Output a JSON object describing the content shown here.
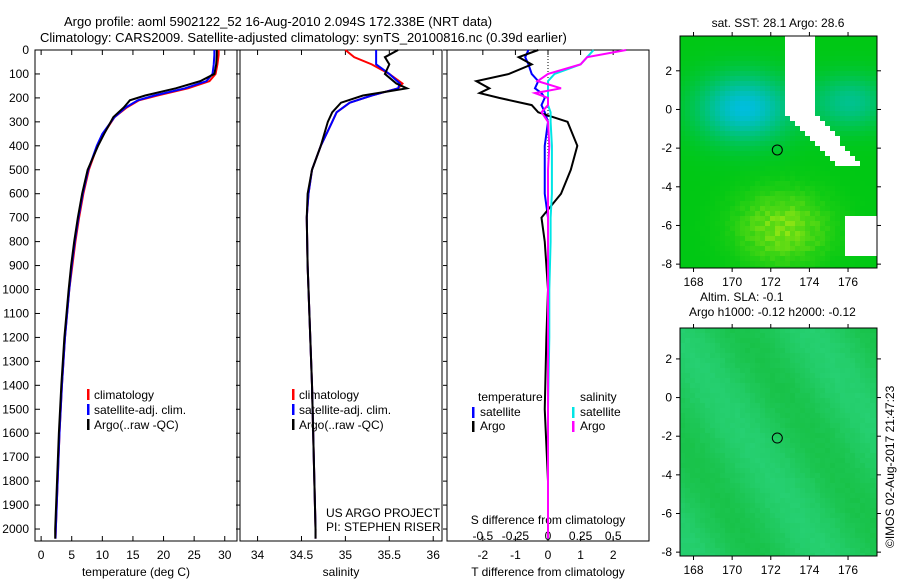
{
  "title_line1": "Argo profile: aoml 5902122_52 16-Aug-2010 2.094S 172.338E (NRT data)",
  "title_line2": "Climatology: CARS2009. Satellite-adjusted climatology: synTS_20100816.nc (0.39d earlier)",
  "watermark": "©IMOS 02-Aug-2017 21:47:23",
  "project_line1": "US ARGO PROJECT",
  "project_line2": "PI: STEPHEN RISER",
  "colors": {
    "climatology": "#ff0000",
    "satellite": "#0000ff",
    "argo": "#000000",
    "sal_satellite": "#00e5e5",
    "sal_argo": "#ff00ff"
  },
  "chart_data": [
    {
      "type": "line",
      "name": "temperature",
      "xlabel": "temperature (deg C)",
      "ylabel": "",
      "xlim": [
        -1,
        32
      ],
      "ylim": [
        2050,
        0
      ],
      "xticks": [
        0,
        5,
        10,
        15,
        20,
        25,
        30
      ],
      "yticks": [
        0,
        100,
        200,
        300,
        400,
        500,
        600,
        700,
        800,
        900,
        1000,
        1100,
        1200,
        1300,
        1400,
        1500,
        1600,
        1700,
        1800,
        1900,
        2000
      ],
      "legend": [
        "climatology",
        "satellite-adj. clim.",
        "Argo(..raw -QC)"
      ],
      "legend_position": "bottom-center",
      "depth": [
        0,
        20,
        60,
        100,
        130,
        160,
        190,
        210,
        240,
        280,
        350,
        400,
        500,
        600,
        700,
        800,
        900,
        1000,
        1200,
        1400,
        1600,
        1800,
        2000,
        2040
      ],
      "series": [
        {
          "name": "climatology",
          "values": [
            29,
            29,
            28.8,
            28.5,
            27.5,
            24,
            19,
            16,
            14,
            12,
            10.2,
            9.2,
            7.8,
            6.9,
            6.2,
            5.6,
            5.1,
            4.6,
            3.9,
            3.4,
            3.0,
            2.7,
            2.4,
            2.35
          ]
        },
        {
          "name": "satellite-adj. clim.",
          "values": [
            28.3,
            28.3,
            28.2,
            28,
            27,
            23.5,
            18.5,
            15.8,
            13.8,
            12,
            10,
            9.1,
            7.7,
            6.8,
            6.1,
            5.5,
            5.0,
            4.6,
            3.9,
            3.4,
            3.0,
            2.7,
            2.4,
            2.35
          ]
        },
        {
          "name": "Argo(..raw -QC)",
          "values": [
            28.7,
            28.7,
            28.6,
            28.3,
            26,
            22,
            17,
            14.5,
            13.5,
            11.8,
            10.3,
            9.3,
            7.6,
            6.7,
            6.0,
            5.4,
            4.9,
            4.5,
            3.8,
            3.3,
            2.9,
            2.6,
            2.3,
            2.3
          ]
        }
      ]
    },
    {
      "type": "line",
      "name": "salinity",
      "xlabel": "salinity",
      "xlim": [
        33.8,
        36.1
      ],
      "ylim": [
        2050,
        0
      ],
      "xticks": [
        34,
        34.5,
        35,
        35.5,
        36
      ],
      "legend": [
        "climatology",
        "satellite-adj. clim.",
        "Argo(..raw -QC)"
      ],
      "legend_position": "bottom-center",
      "depth": [
        0,
        30,
        60,
        100,
        140,
        160,
        190,
        220,
        260,
        300,
        400,
        500,
        600,
        700,
        900,
        1100,
        1400,
        1700,
        2000,
        2040
      ],
      "series": [
        {
          "name": "climatology",
          "values": [
            35.0,
            35.1,
            35.3,
            35.5,
            35.65,
            35.6,
            35.3,
            35.05,
            34.9,
            34.85,
            34.72,
            34.62,
            34.58,
            34.56,
            34.57,
            34.59,
            34.62,
            34.64,
            34.66,
            34.66
          ]
        },
        {
          "name": "satellite-adj. clim.",
          "values": [
            35.35,
            35.35,
            35.35,
            35.5,
            35.62,
            35.6,
            35.3,
            35.05,
            34.9,
            34.85,
            34.72,
            34.62,
            34.58,
            34.56,
            34.57,
            34.59,
            34.62,
            34.64,
            34.66,
            34.66
          ]
        },
        {
          "name": "Argo(..raw -QC)",
          "values": [
            35.6,
            35.45,
            35.5,
            35.45,
            35.58,
            35.7,
            35.2,
            34.95,
            34.85,
            34.8,
            34.72,
            34.62,
            34.57,
            34.56,
            34.57,
            34.59,
            34.62,
            34.64,
            34.66,
            34.66
          ]
        }
      ]
    },
    {
      "type": "line",
      "name": "differences",
      "xlabel": "T difference from climatology",
      "x2label": "S difference from climatology",
      "xlim": [
        -3.1,
        3.1
      ],
      "x2lim": [
        -0.775,
        0.775
      ],
      "ylim": [
        2050,
        0
      ],
      "xticks": [
        -2,
        -1,
        0,
        1,
        2
      ],
      "x2ticks": [
        -0.5,
        -0.25,
        0,
        0.25,
        0.5
      ],
      "legend_temperature": {
        "title": "temperature",
        "items": [
          "satellite",
          "Argo"
        ]
      },
      "legend_salinity": {
        "title": "salinity",
        "items": [
          "satellite",
          "Argo"
        ]
      },
      "depth": [
        0,
        30,
        60,
        100,
        130,
        160,
        180,
        200,
        230,
        260,
        300,
        400,
        500,
        600,
        700,
        800,
        1000,
        1200,
        1500,
        1800,
        2000,
        2040
      ],
      "series": [
        {
          "name": "T satellite",
          "values": [
            -0.6,
            -0.7,
            -0.6,
            -0.5,
            -0.3,
            -0.4,
            -0.2,
            -0.1,
            -0.2,
            -0.1,
            0,
            -0.1,
            -0.1,
            -0.1,
            0,
            0,
            0,
            0,
            0,
            0,
            0,
            0
          ]
        },
        {
          "name": "T Argo",
          "values": [
            -0.3,
            -0.9,
            -0.5,
            -1.2,
            -2.2,
            -1.8,
            -2.1,
            -1.5,
            -0.5,
            -0.3,
            0.6,
            0.9,
            0.7,
            0.4,
            -0.2,
            -0.1,
            0,
            -0.05,
            -0.1,
            0,
            0,
            0
          ]
        },
        {
          "name": "S satellite",
          "values": [
            0.35,
            0.3,
            0.25,
            0.05,
            0,
            0,
            0,
            0,
            0,
            0.02,
            0.02,
            0.03,
            0.03,
            0.03,
            0.02,
            0.02,
            0.01,
            0.01,
            0,
            0,
            0,
            0
          ]
        },
        {
          "name": "S Argo",
          "values": [
            0.6,
            0.3,
            0.25,
            0,
            -0.08,
            0.1,
            -0.1,
            0,
            0,
            -0.05,
            0,
            0.01,
            0,
            0,
            0,
            0,
            0,
            0,
            0,
            0,
            0,
            0
          ]
        }
      ]
    },
    {
      "type": "heatmap",
      "name": "sst-map",
      "title": "sat. SST: 28.1 Argo: 28.6",
      "xlim": [
        167.3,
        177.5
      ],
      "ylim": [
        -8.2,
        3.8
      ],
      "xticks": [
        168,
        170,
        172,
        174,
        176
      ],
      "yticks": [
        2,
        0,
        -2,
        -4,
        -6,
        -8
      ],
      "argo_position": [
        172.338,
        -2.094
      ]
    },
    {
      "type": "heatmap",
      "name": "sla-map",
      "title_line1": "Altim. SLA: -0.1",
      "title_line2": "Argo h1000: -0.12 h2000: -0.12",
      "xlim": [
        167.3,
        177.5
      ],
      "ylim": [
        -8.2,
        3.6
      ],
      "xticks": [
        168,
        170,
        172,
        174,
        176
      ],
      "yticks": [
        2,
        0,
        -2,
        -4,
        -6,
        -8
      ],
      "argo_position": [
        172.338,
        -2.094
      ]
    }
  ]
}
